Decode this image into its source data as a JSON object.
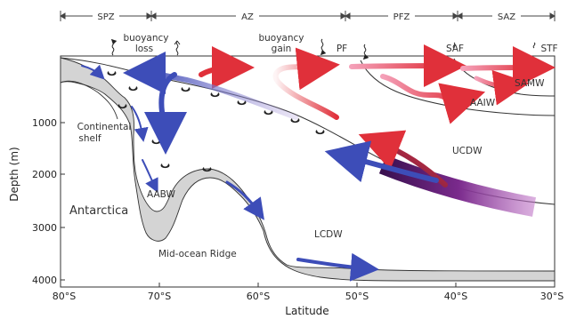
{
  "zones": [
    {
      "id": "spz",
      "label": "SPZ"
    },
    {
      "id": "az",
      "label": "AZ"
    },
    {
      "id": "pfz",
      "label": "PFZ"
    },
    {
      "id": "saz",
      "label": "SAZ"
    }
  ],
  "fronts": {
    "pf": "PF",
    "saf": "SAF",
    "stf": "STF"
  },
  "processes": {
    "buoyancy_loss": "buoyancy\nloss",
    "buoyancy_gain": "buoyancy\ngain"
  },
  "water_masses": {
    "samw": "SAMW",
    "aaiw": "AAIW",
    "ucdw": "UCDW",
    "lcdw": "LCDW",
    "aabw": "AABW"
  },
  "features": {
    "continental_shelf": "Continental\nshelf",
    "antarctica": "Antarctica",
    "mid_ocean_ridge": "Mid-ocean Ridge"
  },
  "axes": {
    "x_label": "Latitude",
    "y_label": "Depth (m)",
    "x_ticks": [
      "80°S",
      "70°S",
      "60°S",
      "50°S",
      "40°S",
      "30°S"
    ],
    "y_ticks": [
      "1000",
      "2000",
      "3000",
      "4000"
    ]
  },
  "colors": {
    "red_flow": "#e0303a",
    "blue_flow": "#3d4db8",
    "purple_flow": "#7a2a8c",
    "seafloor_fill": "#d4d4d4"
  }
}
